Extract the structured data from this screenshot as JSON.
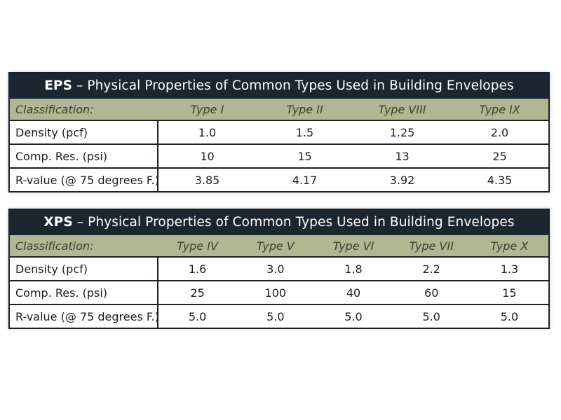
{
  "eps": {
    "abbr": "EPS",
    "title_rest": " – Physical Properties of Common Types Used in Building Envelopes",
    "header_label": "Classification:",
    "types": [
      "Type I",
      "Type II",
      "Type VIII",
      "Type IX"
    ],
    "rows": [
      {
        "label": "Density (pcf)",
        "values": [
          "1.0",
          "1.5",
          "1.25",
          "2.0"
        ]
      },
      {
        "label": "Comp. Res. (psi)",
        "values": [
          "10",
          "15",
          "13",
          "25"
        ]
      },
      {
        "label": "R-value (@ 75 degrees F.)",
        "values": [
          "3.85",
          "4.17",
          "3.92",
          "4.35"
        ]
      }
    ]
  },
  "xps": {
    "abbr": "XPS",
    "title_rest": " – Physical Properties of Common Types Used in Building Envelopes",
    "header_label": "Classification:",
    "types": [
      "Type IV",
      "Type V",
      "Type VI",
      "Type VII",
      "Type X"
    ],
    "rows": [
      {
        "label": "Density (pcf)",
        "values": [
          "1.6",
          "3.0",
          "1.8",
          "2.2",
          "1.3"
        ]
      },
      {
        "label": "Comp. Res. (psi)",
        "values": [
          "25",
          "100",
          "40",
          "60",
          "15"
        ]
      },
      {
        "label": "R-value (@ 75 degrees F.)",
        "values": [
          "5.0",
          "5.0",
          "5.0",
          "5.0",
          "5.0"
        ]
      }
    ]
  },
  "colors": {
    "title_bar": "#1c2631",
    "header_row": "#b1b793",
    "border": "#1a2028"
  }
}
